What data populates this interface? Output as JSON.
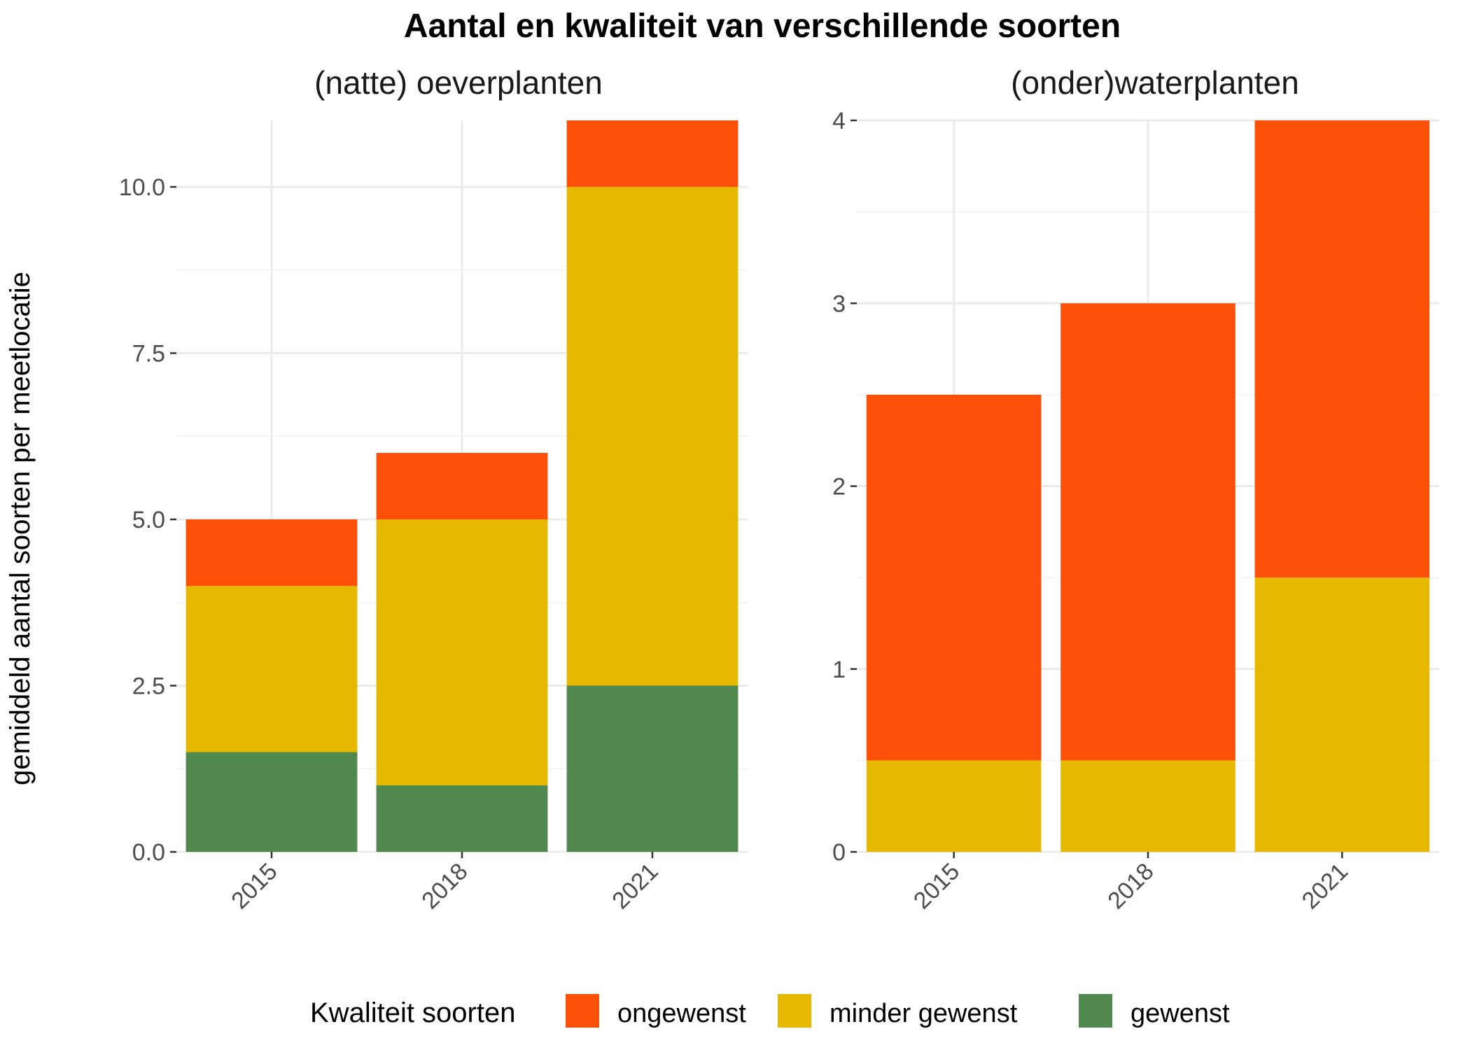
{
  "colors": {
    "ongewenst": "#FF5009",
    "minder gewenst": "#E6B900",
    "gewenst": "#51884E"
  },
  "chart_data": {
    "type": "bar",
    "stacked": true,
    "title": "Aantal en kwaliteit van verschillende soorten",
    "ylabel": "gemiddeld aantal soorten per meetlocatie",
    "xlabel": "",
    "legend": {
      "title": "Kwaliteit soorten",
      "position": "bottom",
      "entries": [
        "ongewenst",
        "minder gewenst",
        "gewenst"
      ]
    },
    "grid": true,
    "panels": [
      {
        "subtitle": "(natte) oeverplanten",
        "categories": [
          "2015",
          "2018",
          "2021"
        ],
        "ylim": [
          0,
          11
        ],
        "yticks": [
          0,
          2.5,
          5,
          7.5,
          10
        ],
        "ytick_labels": [
          "0.0",
          "2.5",
          "5.0",
          "7.5",
          "10.0"
        ],
        "series": [
          {
            "name": "gewenst",
            "values": [
              1.5,
              1,
              2.5
            ]
          },
          {
            "name": "minder gewenst",
            "values": [
              2.5,
              4,
              7.5
            ]
          },
          {
            "name": "ongewenst",
            "values": [
              1,
              1,
              1
            ]
          }
        ]
      },
      {
        "subtitle": "(onder)waterplanten",
        "categories": [
          "2015",
          "2018",
          "2021"
        ],
        "ylim": [
          0,
          4
        ],
        "yticks": [
          0,
          1,
          2,
          3,
          4
        ],
        "ytick_labels": [
          "0",
          "1",
          "2",
          "3",
          "4"
        ],
        "series": [
          {
            "name": "gewenst",
            "values": [
              0,
              0,
              0
            ]
          },
          {
            "name": "minder gewenst",
            "values": [
              0.5,
              0.5,
              1.5
            ]
          },
          {
            "name": "ongewenst",
            "values": [
              2,
              2.5,
              2.5
            ]
          }
        ]
      }
    ]
  }
}
